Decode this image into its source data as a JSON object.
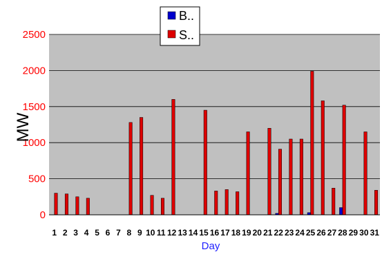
{
  "chart_data": {
    "type": "bar",
    "ylabel": "MW",
    "xlabel": "Day",
    "ylim": [
      0,
      2500
    ],
    "yticks": [
      0,
      500,
      1000,
      1500,
      2000,
      2500
    ],
    "ytick_labels": [
      "0",
      "500",
      "1000",
      "1500",
      "2000",
      "2500"
    ],
    "grid": "horizontal",
    "legend_position": "top",
    "categories": [
      "1",
      "2",
      "3",
      "4",
      "5",
      "6",
      "7",
      "8",
      "9",
      "10",
      "11",
      "12",
      "13",
      "14",
      "15",
      "16",
      "17",
      "18",
      "19",
      "20",
      "21",
      "22",
      "23",
      "24",
      "25",
      "26",
      "27",
      "28",
      "29",
      "30",
      "31"
    ],
    "series": [
      {
        "name": "B..",
        "color": "#0000cc",
        "values": [
          0,
          0,
          0,
          0,
          0,
          0,
          0,
          0,
          0,
          0,
          0,
          0,
          0,
          0,
          0,
          0,
          0,
          0,
          0,
          0,
          0,
          20,
          0,
          0,
          30,
          0,
          0,
          100,
          0,
          0,
          0
        ]
      },
      {
        "name": "S..",
        "color": "#dd0000",
        "values": [
          300,
          290,
          250,
          230,
          0,
          0,
          0,
          1280,
          1350,
          270,
          230,
          1600,
          0,
          0,
          1450,
          330,
          350,
          320,
          1150,
          0,
          1200,
          910,
          1050,
          1050,
          1990,
          1580,
          370,
          1520,
          0,
          1150,
          340
        ]
      }
    ],
    "plot_background": "#c0c0c0"
  }
}
